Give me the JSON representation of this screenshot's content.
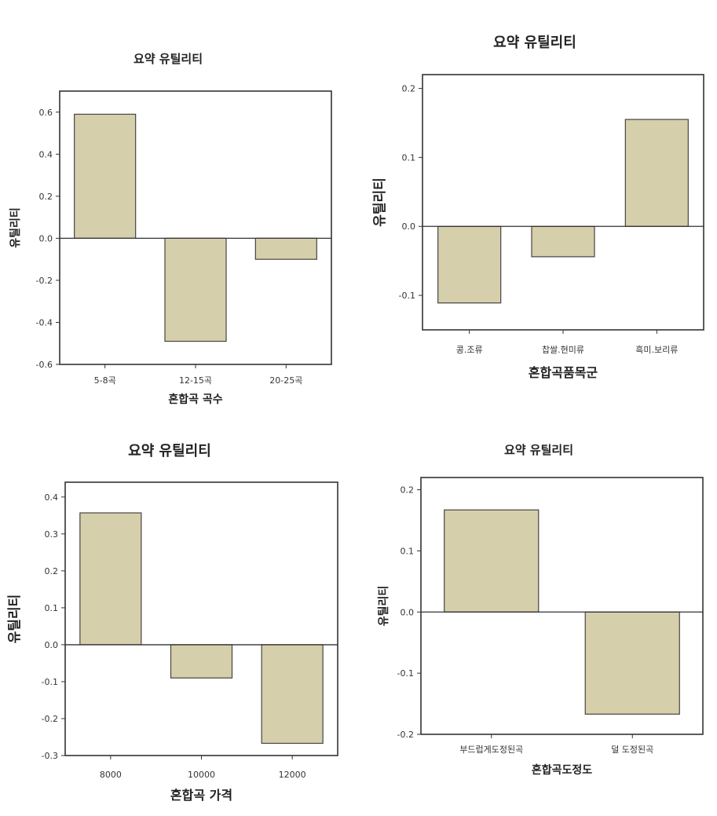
{
  "chart_data": [
    {
      "type": "bar",
      "title": "요약 유틸리티",
      "xlabel": "혼합곡 곡수",
      "ylabel": "유틸리티",
      "categories": [
        "5-8곡",
        "12-15곡",
        "20-25곡"
      ],
      "values": [
        0.59,
        -0.49,
        -0.1
      ],
      "ylim": [
        -0.6,
        0.7
      ],
      "yticks": [
        0.6,
        0.4,
        0.2,
        0.0,
        -0.2,
        -0.4,
        -0.6
      ],
      "ytick_labels": [
        "0.6",
        "0.4",
        "0.2",
        "0.0",
        "-0.2",
        "-0.4",
        "-0.6"
      ],
      "bar_color": "#d6cfab"
    },
    {
      "type": "bar",
      "title": "요약 유틸리티",
      "xlabel": "혼합곡품목군",
      "ylabel": "유틸리티",
      "categories": [
        "콩.조류",
        "찹쌀.현미류",
        "흑미.보리류"
      ],
      "values": [
        -0.111,
        -0.044,
        0.155
      ],
      "ylim": [
        -0.15,
        0.22
      ],
      "yticks": [
        0.2,
        0.1,
        0.0,
        -0.1
      ],
      "ytick_labels": [
        "0.2",
        "0.1",
        "0.0",
        "-0.1"
      ],
      "bar_color": "#d6cfab"
    },
    {
      "type": "bar",
      "title": "요약 유틸리티",
      "xlabel": "혼합곡 가격",
      "ylabel": "유틸리티",
      "categories": [
        "8000",
        "10000",
        "12000"
      ],
      "values": [
        0.357,
        -0.09,
        -0.267
      ],
      "ylim": [
        -0.3,
        0.44
      ],
      "yticks": [
        0.4,
        0.3,
        0.2,
        0.1,
        0.0,
        -0.1,
        -0.2,
        -0.3
      ],
      "ytick_labels": [
        "0.4",
        "0.3",
        "0.2",
        "0.1",
        "0.0",
        "-0.1",
        "-0.2",
        "-0.3"
      ],
      "bar_color": "#d6cfab"
    },
    {
      "type": "bar",
      "title": "요약 유틸리티",
      "xlabel": "혼합곡도정도",
      "ylabel": "유틸리티",
      "categories": [
        "부드럽게도정된곡",
        "덜 도정된곡"
      ],
      "values": [
        0.167,
        -0.167
      ],
      "ylim": [
        -0.2,
        0.22
      ],
      "yticks": [
        0.2,
        0.1,
        0.0,
        -0.1,
        -0.2
      ],
      "ytick_labels": [
        "0.2",
        "0.1",
        "0.0",
        "-0.1",
        "-0.2"
      ],
      "bar_color": "#d6cfab"
    }
  ]
}
